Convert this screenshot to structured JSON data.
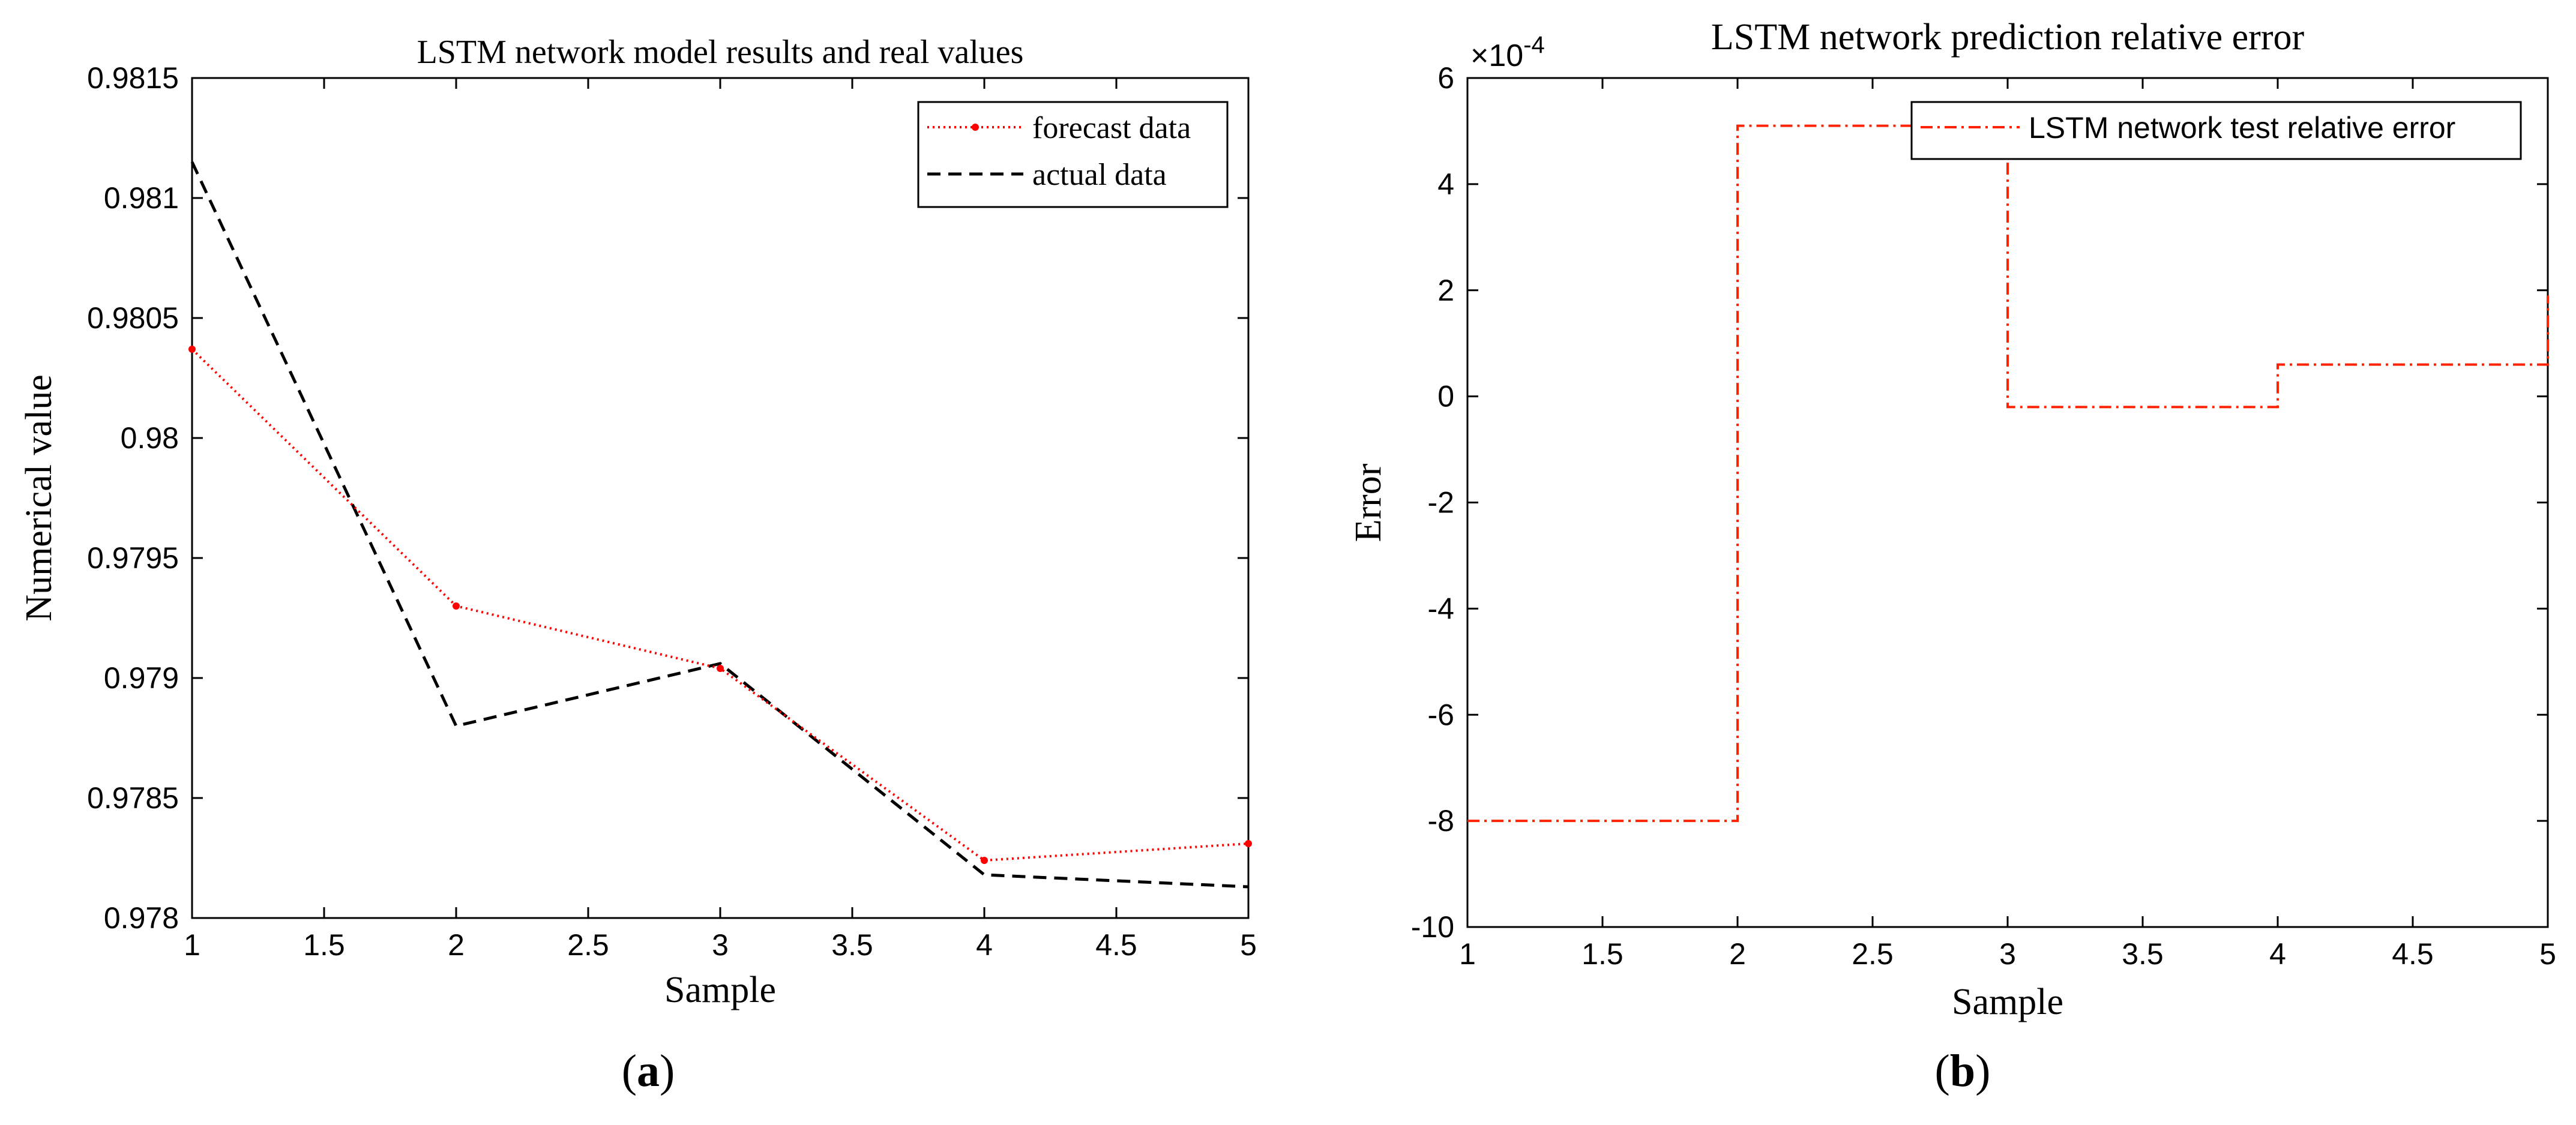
{
  "colors": {
    "forecast": "#ff0000",
    "actual": "#000000",
    "error": "#ff2200",
    "axis": "#000000",
    "background": "#ffffff"
  },
  "chart_data": [
    {
      "type": "line",
      "panel_label": "a",
      "title": "LSTM network model results and real values",
      "xlabel": "Sample",
      "ylabel": "Numerical value",
      "xlim": [
        1,
        5
      ],
      "ylim": [
        0.978,
        0.9815
      ],
      "x_ticks": [
        1,
        1.5,
        2,
        2.5,
        3,
        3.5,
        4,
        4.5,
        5
      ],
      "x_tick_labels": [
        "1",
        "1.5",
        "2",
        "2.5",
        "3",
        "3.5",
        "4",
        "4.5",
        "5"
      ],
      "y_ticks": [
        0.978,
        0.9785,
        0.979,
        0.9795,
        0.98,
        0.9805,
        0.981,
        0.9815
      ],
      "y_tick_labels": [
        "0.978",
        "0.9785",
        "0.979",
        "0.9795",
        "0.98",
        "0.9805",
        "0.981",
        "0.9815"
      ],
      "legend_position": "top-right",
      "x": [
        1,
        2,
        3,
        4,
        5
      ],
      "series": [
        {
          "name": "forecast data",
          "style": "dotted-marker",
          "values": [
            0.98037,
            0.9793,
            0.97904,
            0.97824,
            0.97831
          ]
        },
        {
          "name": "actual data",
          "style": "dashed",
          "values": [
            0.98115,
            0.9788,
            0.97906,
            0.97818,
            0.97813
          ]
        }
      ]
    },
    {
      "type": "line",
      "panel_label": "b",
      "title": "LSTM network prediction relative error",
      "xlabel": "Sample",
      "ylabel": "Error",
      "axis_exponent_base": "×10",
      "axis_exponent_power": "-4",
      "xlim": [
        1,
        5
      ],
      "ylim": [
        -10,
        6
      ],
      "x_ticks": [
        1,
        1.5,
        2,
        2.5,
        3,
        3.5,
        4,
        4.5,
        5
      ],
      "x_tick_labels": [
        "1",
        "1.5",
        "2",
        "2.5",
        "3",
        "3.5",
        "4",
        "4.5",
        "5"
      ],
      "y_ticks": [
        -10,
        -8,
        -6,
        -4,
        -2,
        0,
        2,
        4,
        6
      ],
      "y_tick_labels": [
        "-10",
        "-8",
        "-6",
        "-4",
        "-2",
        "0",
        "2",
        "4",
        "6"
      ],
      "legend_position": "top-right",
      "series": [
        {
          "name": "LSTM network test relative error",
          "style": "dash-dot-step",
          "x": [
            1,
            2,
            3,
            4,
            5
          ],
          "values": [
            -8.0,
            5.1,
            -0.2,
            0.6,
            1.9
          ]
        }
      ]
    }
  ]
}
